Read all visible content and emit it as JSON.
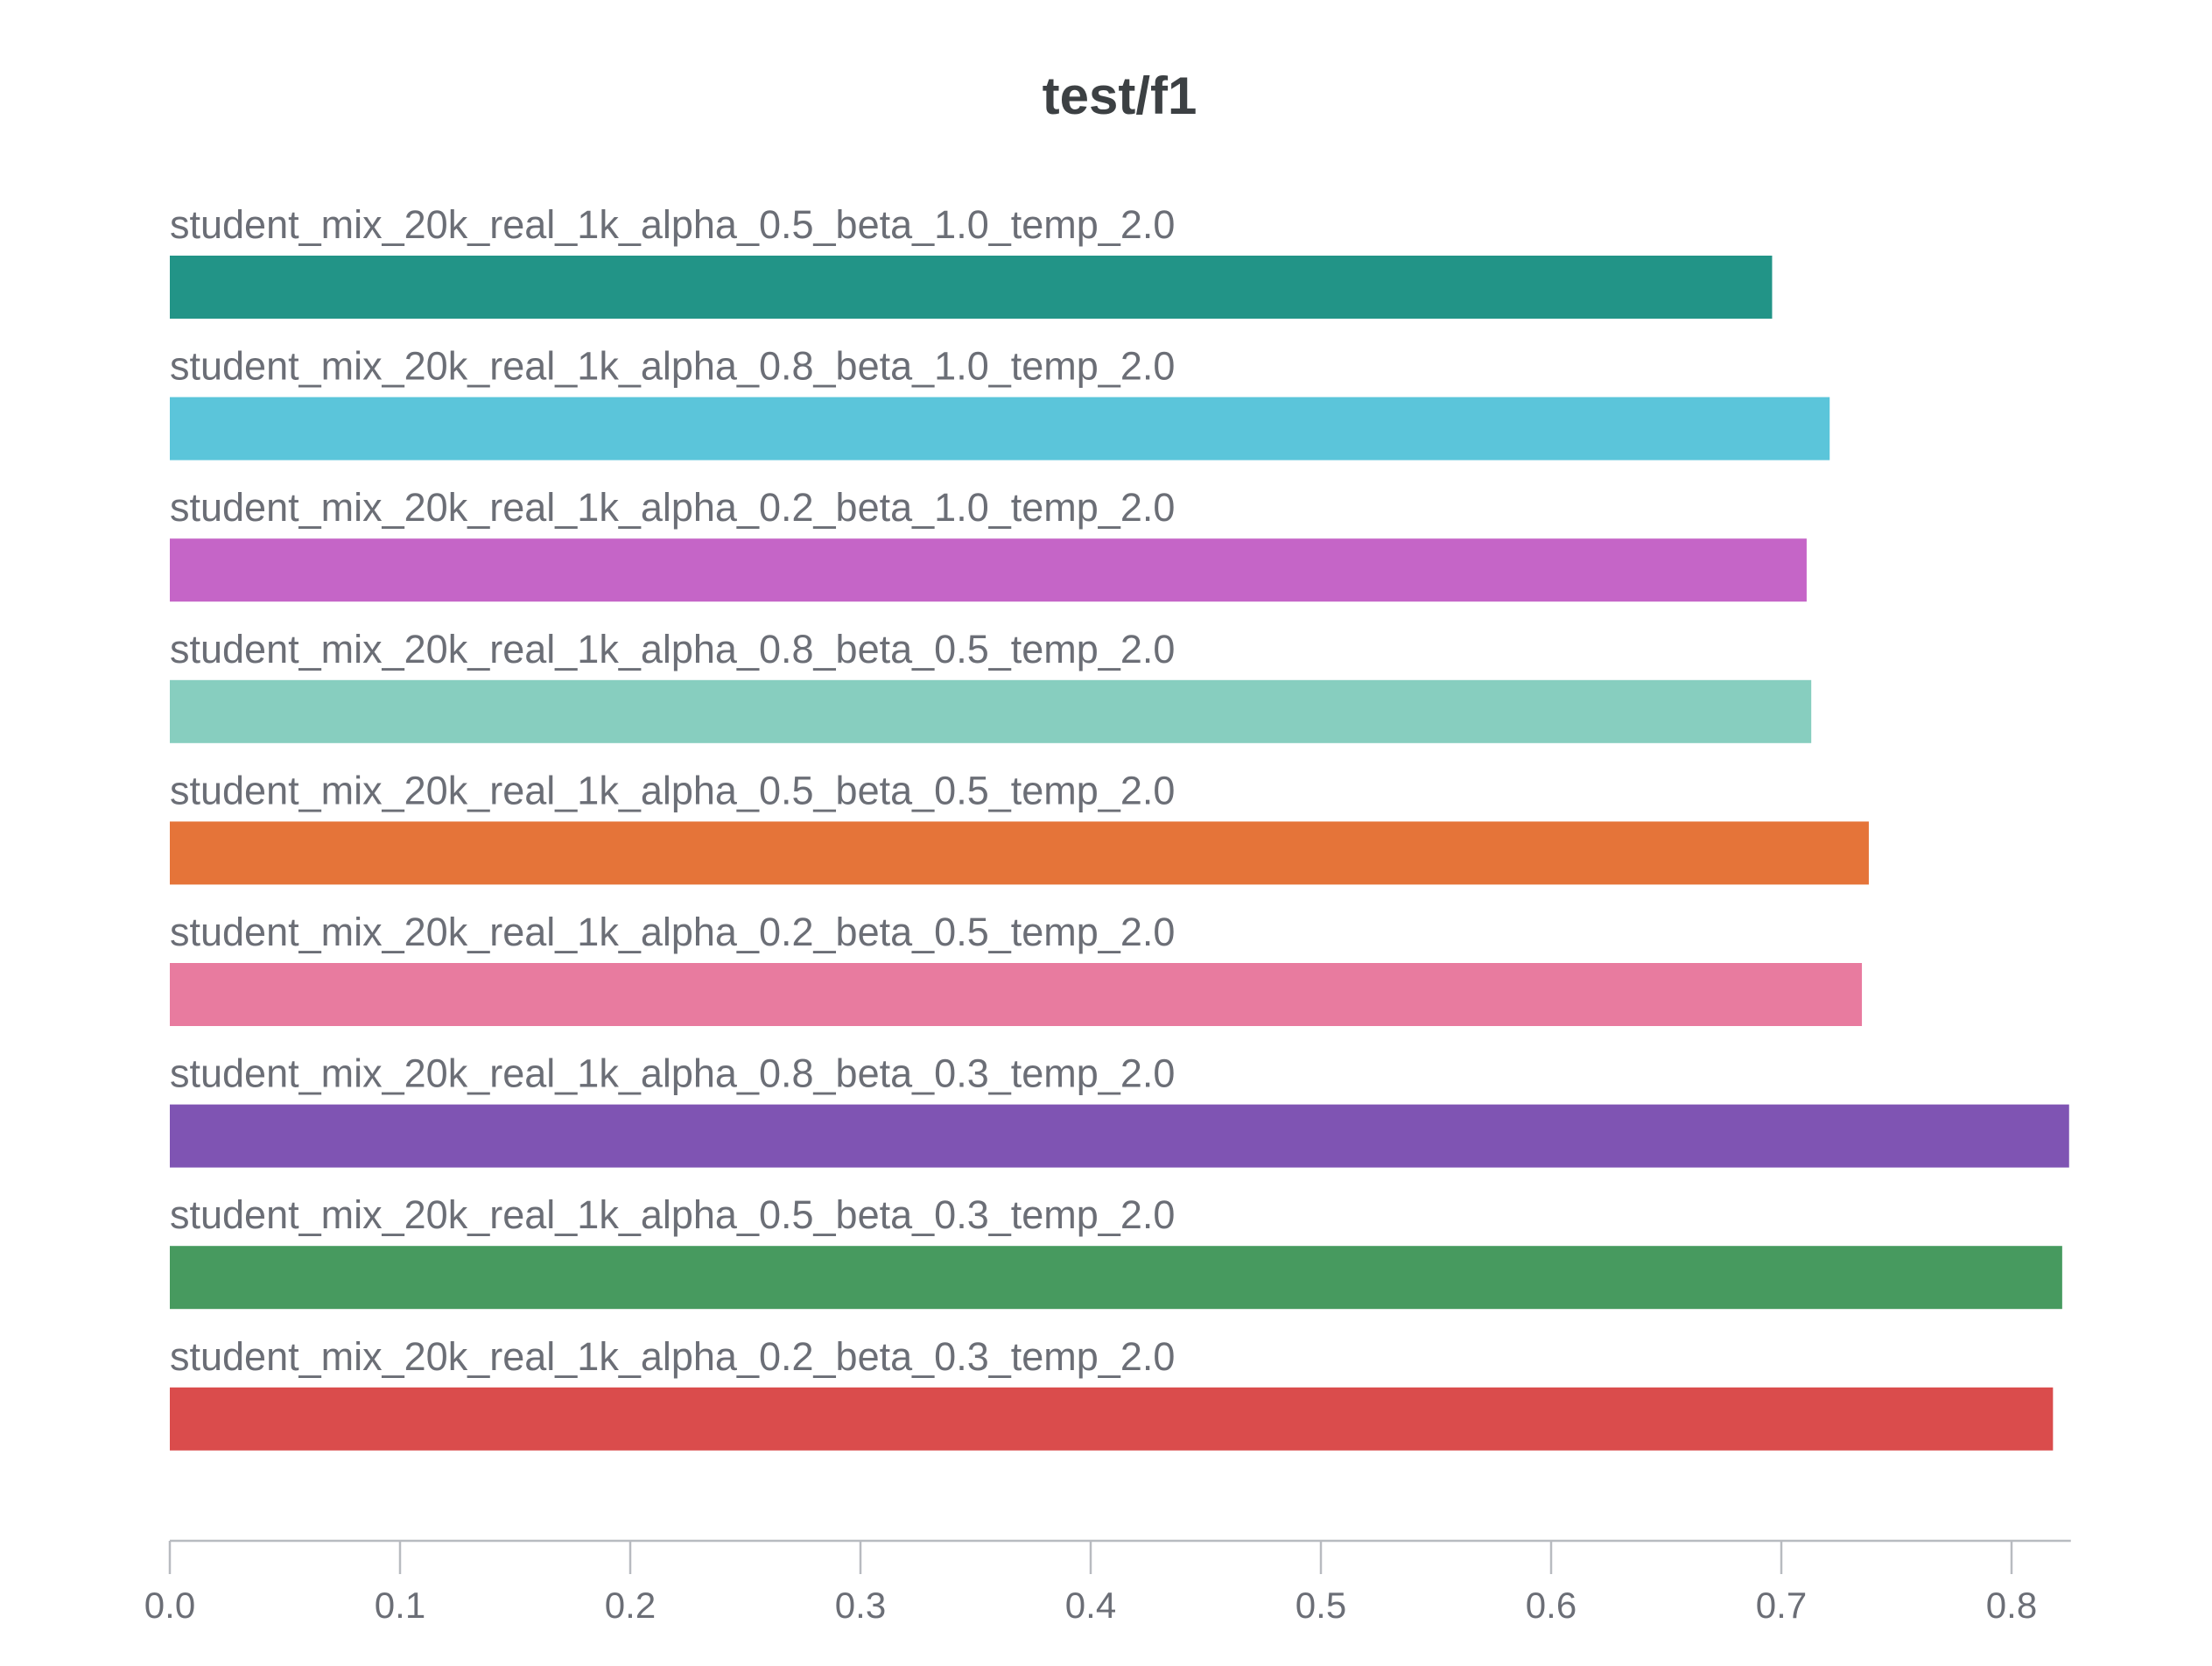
{
  "chart_data": {
    "type": "bar",
    "orientation": "horizontal",
    "title": "test/f1",
    "xlabel": "",
    "ylabel": "",
    "xlim": [
      0,
      0.825
    ],
    "xticks": [
      "0.0",
      "0.1",
      "0.2",
      "0.3",
      "0.4",
      "0.5",
      "0.6",
      "0.7",
      "0.8"
    ],
    "grid": false,
    "legend": "none",
    "categories": [
      "student_mix_20k_real_1k_alpha_0.5_beta_1.0_temp_2.0",
      "student_mix_20k_real_1k_alpha_0.8_beta_1.0_temp_2.0",
      "student_mix_20k_real_1k_alpha_0.2_beta_1.0_temp_2.0",
      "student_mix_20k_real_1k_alpha_0.8_beta_0.5_temp_2.0",
      "student_mix_20k_real_1k_alpha_0.5_beta_0.5_temp_2.0",
      "student_mix_20k_real_1k_alpha_0.2_beta_0.5_temp_2.0",
      "student_mix_20k_real_1k_alpha_0.8_beta_0.3_temp_2.0",
      "student_mix_20k_real_1k_alpha_0.5_beta_0.3_temp_2.0",
      "student_mix_20k_real_1k_alpha_0.2_beta_0.3_temp_2.0"
    ],
    "values": [
      0.696,
      0.721,
      0.711,
      0.713,
      0.738,
      0.735,
      0.825,
      0.822,
      0.818
    ],
    "colors": [
      "#229487",
      "#5bc5da",
      "#c565c7",
      "#87cebf",
      "#e57439",
      "#e87b9f",
      "#7f54b3",
      "#479a5f",
      "#da4c4c"
    ]
  }
}
